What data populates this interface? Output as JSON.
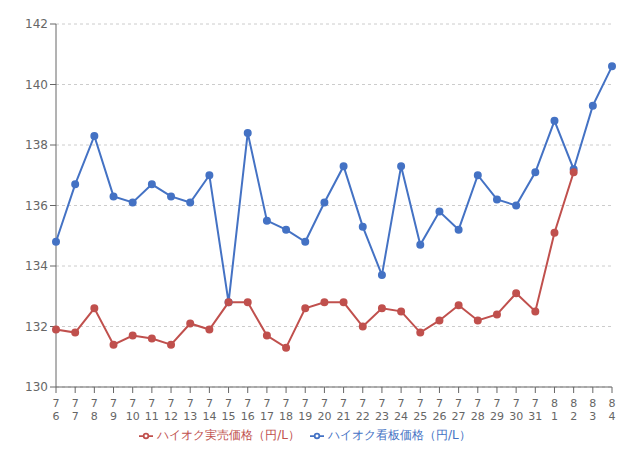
{
  "chart_data": {
    "type": "line",
    "categories": [
      "7\n6",
      "7\n7",
      "7\n8",
      "7\n9",
      "7\n10",
      "7\n11",
      "7\n12",
      "7\n13",
      "7\n14",
      "7\n15",
      "7\n16",
      "7\n17",
      "7\n18",
      "7\n19",
      "7\n20",
      "7\n21",
      "7\n22",
      "7\n23",
      "7\n24",
      "7\n25",
      "7\n26",
      "7\n27",
      "7\n28",
      "7\n29",
      "7\n30",
      "7\n31",
      "8\n1",
      "8\n2",
      "8\n3",
      "8\n4"
    ],
    "series": [
      {
        "name": "ハイオク看板価格（円/L）",
        "color": "#4472C4",
        "values": [
          134.8,
          136.7,
          138.3,
          136.3,
          136.1,
          136.7,
          136.3,
          136.1,
          137.0,
          132.8,
          138.4,
          135.5,
          135.2,
          134.8,
          136.1,
          137.3,
          135.3,
          133.7,
          137.3,
          134.7,
          135.8,
          135.2,
          137.0,
          136.2,
          136.0,
          137.1,
          138.8,
          137.2,
          139.3,
          140.6
        ]
      },
      {
        "name": "ハイオク実売価格（円/L）",
        "color": "#C0504D",
        "values": [
          131.9,
          131.8,
          132.6,
          131.4,
          131.7,
          131.6,
          131.4,
          132.1,
          131.9,
          132.8,
          132.8,
          131.7,
          131.3,
          132.6,
          132.8,
          132.8,
          132.0,
          132.6,
          132.5,
          131.8,
          132.2,
          132.7,
          132.2,
          132.4,
          133.1,
          132.5,
          135.1,
          137.1,
          null,
          null
        ]
      }
    ],
    "ylim": [
      130,
      142
    ],
    "yticks": [
      130,
      132,
      134,
      136,
      138,
      140,
      142
    ],
    "grid": true,
    "legend": "bottom",
    "marker": "circle"
  }
}
